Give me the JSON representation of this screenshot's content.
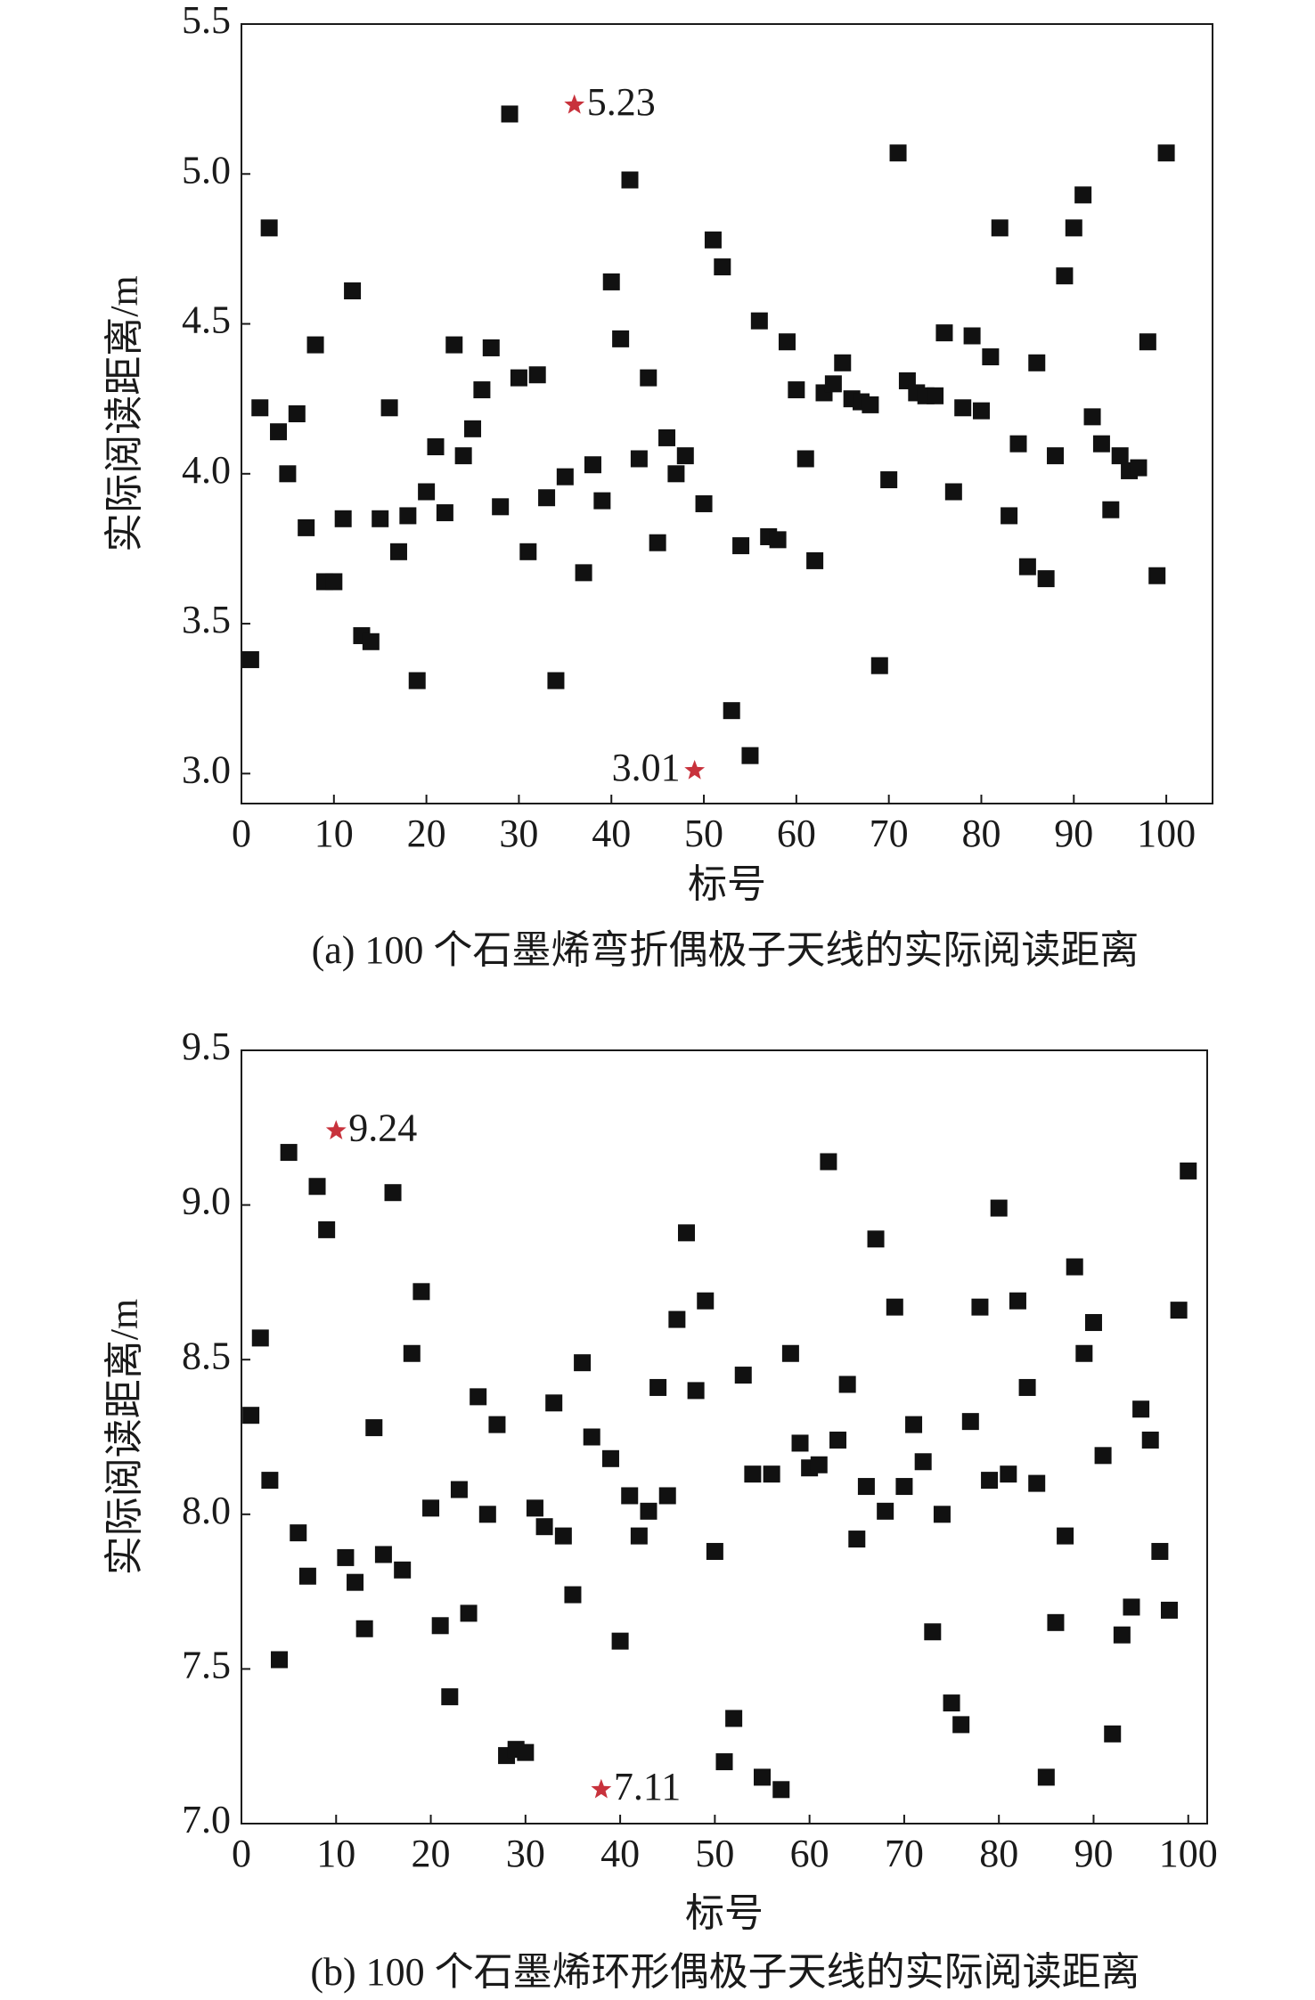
{
  "chart_data": [
    {
      "type": "scatter",
      "caption": "(a) 100 个石墨烯弯折偶极子天线的实际阅读距离",
      "x_label": "标号",
      "y_label": "实际阅读距离/m",
      "color": "#111111",
      "x": [
        1,
        2,
        3,
        4,
        5,
        6,
        7,
        8,
        9,
        10,
        11,
        12,
        13,
        14,
        15,
        16,
        17,
        18,
        19,
        20,
        21,
        22,
        23,
        24,
        25,
        26,
        27,
        28,
        29,
        30,
        31,
        32,
        33,
        34,
        35,
        37,
        38,
        39,
        40,
        41,
        42,
        43,
        44,
        45,
        46,
        47,
        48,
        50,
        51,
        52,
        53,
        54,
        55,
        56,
        57,
        58,
        59,
        60,
        61,
        62,
        63,
        64,
        65,
        66,
        67,
        68,
        69,
        70,
        71,
        72,
        73,
        74,
        75,
        76,
        77,
        78,
        79,
        80,
        81,
        82,
        83,
        84,
        85,
        86,
        87,
        88,
        89,
        90,
        91,
        92,
        93,
        94,
        95,
        96,
        97,
        98,
        99,
        100
      ],
      "values": [
        3.38,
        4.22,
        4.82,
        4.14,
        4.0,
        4.2,
        3.82,
        4.43,
        3.64,
        3.64,
        3.85,
        4.61,
        3.46,
        3.44,
        3.85,
        4.22,
        3.74,
        3.86,
        3.31,
        3.94,
        4.09,
        3.87,
        4.43,
        4.06,
        4.15,
        4.28,
        4.42,
        3.89,
        5.2,
        4.32,
        3.74,
        4.33,
        3.92,
        3.31,
        3.99,
        3.67,
        4.03,
        3.91,
        4.64,
        4.45,
        4.98,
        4.05,
        4.32,
        3.77,
        4.12,
        4.0,
        4.06,
        3.9,
        4.78,
        4.69,
        3.21,
        3.76,
        3.06,
        4.51,
        3.79,
        3.78,
        4.44,
        4.28,
        4.05,
        3.71,
        4.27,
        4.3,
        4.37,
        4.25,
        4.24,
        4.23,
        3.36,
        3.98,
        5.07,
        4.31,
        4.27,
        4.26,
        4.26,
        4.47,
        3.94,
        4.22,
        4.46,
        4.21,
        4.39,
        4.82,
        3.86,
        4.1,
        3.69,
        4.37,
        3.65,
        4.06,
        4.66,
        4.82,
        4.93,
        4.19,
        4.1,
        3.88,
        4.06,
        4.01,
        4.02,
        4.44,
        3.66,
        5.07
      ],
      "highlights": {
        "color": "#c8323c",
        "x": [
          36,
          49
        ],
        "values": [
          5.23,
          3.01
        ]
      },
      "xlim": [
        0,
        105
      ],
      "xticks": [
        0,
        10,
        20,
        30,
        40,
        50,
        60,
        70,
        80,
        90,
        100
      ],
      "ylim": [
        2.9,
        5.5
      ],
      "yticks": [
        {
          "value": 3,
          "label": "3.0"
        },
        3.5,
        {
          "value": 4,
          "label": "4.0"
        },
        4.5,
        {
          "value": 5,
          "label": "5.0"
        },
        5.5
      ]
    },
    {
      "type": "scatter",
      "caption": "(b) 100 个石墨烯环形偶极子天线的实际阅读距离",
      "x_label": "标号",
      "y_label": "实际阅读距离/m",
      "color": "#111111",
      "x": [
        1,
        2,
        3,
        4,
        5,
        6,
        7,
        8,
        9,
        11,
        12,
        13,
        14,
        15,
        16,
        17,
        18,
        19,
        20,
        21,
        22,
        23,
        24,
        25,
        26,
        27,
        28,
        29,
        30,
        31,
        32,
        33,
        34,
        35,
        36,
        37,
        39,
        40,
        41,
        42,
        43,
        44,
        45,
        46,
        47,
        48,
        49,
        50,
        51,
        52,
        53,
        54,
        55,
        56,
        57,
        58,
        59,
        60,
        61,
        62,
        63,
        64,
        65,
        66,
        67,
        68,
        69,
        70,
        71,
        72,
        73,
        74,
        75,
        76,
        77,
        78,
        79,
        80,
        81,
        82,
        83,
        84,
        85,
        86,
        87,
        88,
        89,
        90,
        91,
        92,
        93,
        94,
        95,
        96,
        97,
        98,
        99,
        100
      ],
      "values": [
        8.32,
        8.57,
        8.11,
        7.53,
        9.17,
        7.94,
        7.8,
        9.06,
        8.92,
        7.86,
        7.78,
        7.63,
        8.28,
        7.87,
        9.04,
        7.82,
        8.52,
        8.72,
        8.02,
        7.64,
        7.41,
        8.08,
        7.68,
        8.38,
        8.0,
        8.29,
        7.22,
        7.24,
        7.23,
        8.02,
        7.96,
        8.36,
        7.93,
        7.74,
        8.49,
        8.25,
        8.18,
        7.59,
        8.06,
        7.93,
        8.01,
        8.41,
        8.06,
        8.63,
        8.91,
        8.4,
        8.69,
        7.88,
        7.2,
        7.34,
        8.45,
        8.13,
        7.15,
        8.13,
        7.11,
        8.52,
        8.23,
        8.15,
        8.16,
        9.14,
        8.24,
        8.42,
        7.92,
        8.09,
        8.89,
        8.01,
        8.67,
        8.09,
        8.29,
        8.17,
        7.62,
        8.0,
        7.39,
        7.32,
        8.3,
        8.67,
        8.11,
        8.99,
        8.13,
        8.69,
        8.41,
        8.1,
        7.15,
        7.65,
        7.93,
        8.8,
        8.52,
        8.62,
        8.19,
        7.29,
        7.61,
        7.7,
        8.34,
        8.24,
        7.88,
        7.69,
        8.66,
        9.11
      ],
      "highlights": {
        "color": "#c8323c",
        "x": [
          10,
          38
        ],
        "values": [
          9.24,
          7.11
        ]
      },
      "xlim": [
        0,
        102
      ],
      "xticks": [
        0,
        10,
        20,
        30,
        40,
        50,
        60,
        70,
        80,
        90,
        100
      ],
      "ylim": [
        7.0,
        9.5
      ],
      "yticks": [
        {
          "value": 7,
          "label": "7.0"
        },
        7.5,
        {
          "value": 8,
          "label": "8.0"
        },
        8.5,
        {
          "value": 9,
          "label": "9.0"
        },
        9.5
      ]
    }
  ]
}
